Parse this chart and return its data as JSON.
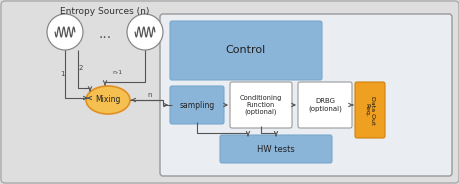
{
  "bg_outer": "#dedede",
  "bg_inner_rect": "#eaeef3",
  "color_blue": "#8ab4d8",
  "color_blue_dark": "#7aa8cc",
  "color_orange": "#f0a020",
  "color_orange_edge": "#d08010",
  "color_white": "#ffffff",
  "color_mixing_fill": "#f5c050",
  "color_mixing_edge": "#e09020",
  "color_gray_line": "#666666",
  "color_edge_inner": "#999999",
  "color_edge_outer": "#aaaaaa",
  "title_entropy": "Entropy Sources (n)",
  "label_mixing": "Mixing",
  "label_control": "Control",
  "label_sampling": "sampling",
  "label_conditioning": "Conditioning\nFunction\n(optional)",
  "label_drbg": "DRBG\n(optional)",
  "label_dataout": "Data Out\nReq.",
  "label_hwtests": "HW tests",
  "figsize": [
    4.6,
    1.84
  ],
  "dpi": 100
}
